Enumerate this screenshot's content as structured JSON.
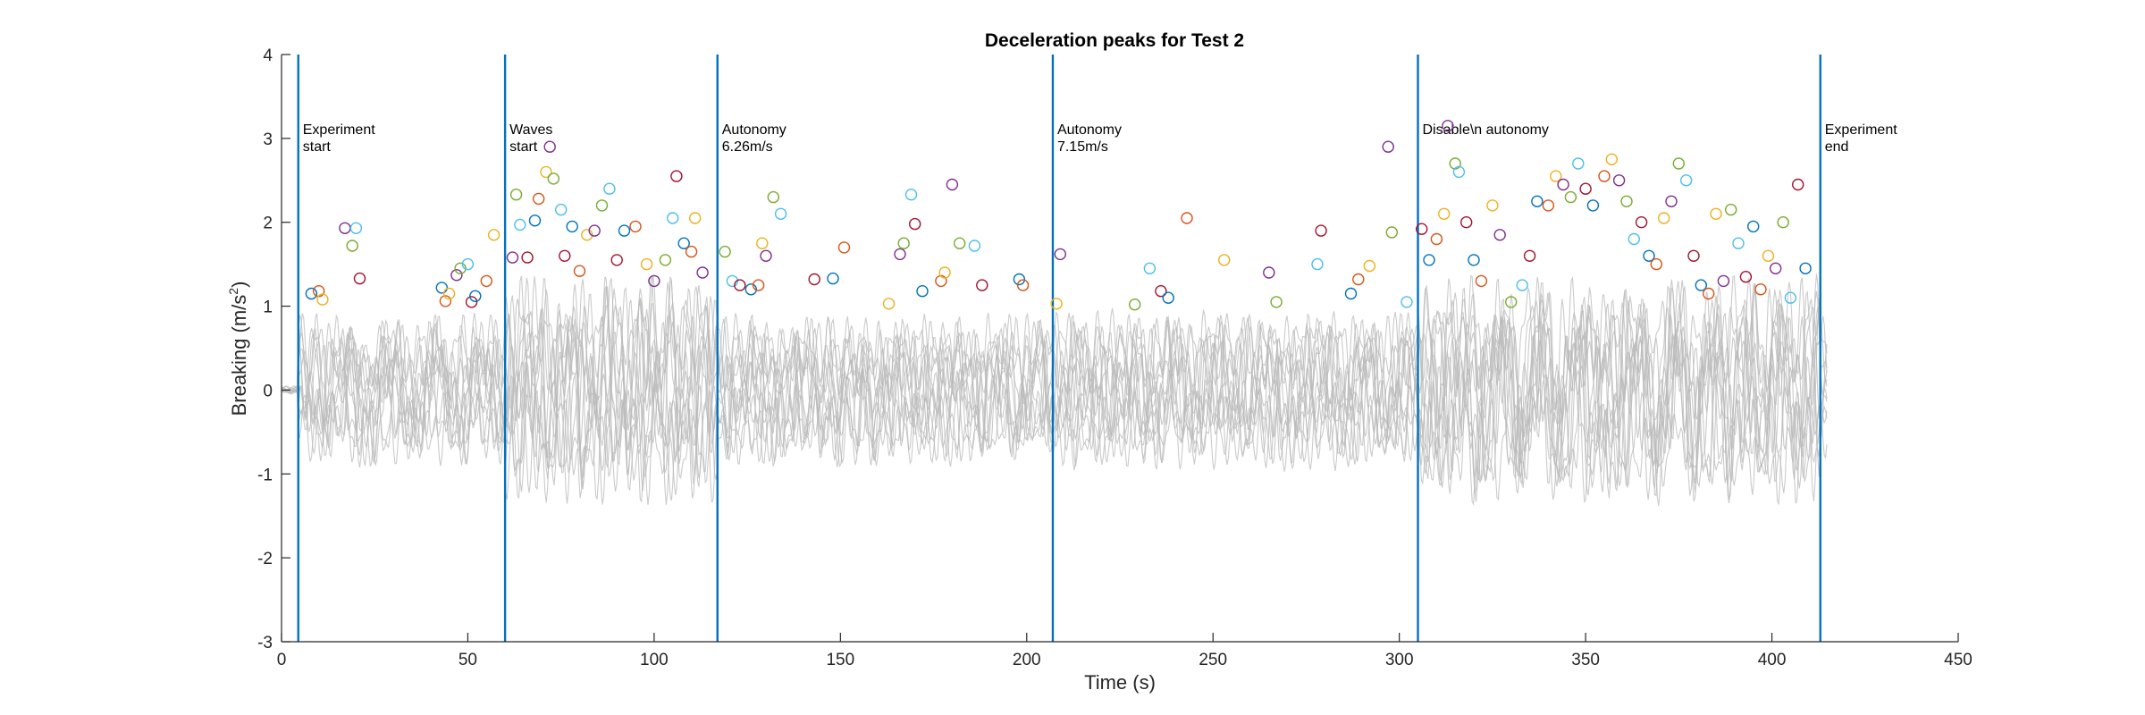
{
  "chart_data": {
    "type": "line",
    "title": "Deceleration peaks for Test 2",
    "xlabel": "Time (s)",
    "ylabel": "Breaking (m/s²)",
    "ylabel_base": "Breaking (m/s",
    "ylabel_sup": "2",
    "ylabel_close": ")",
    "xlim": [
      0,
      450
    ],
    "ylim": [
      -3,
      4
    ],
    "xticks": [
      "0",
      "50",
      "100",
      "150",
      "200",
      "250",
      "300",
      "350",
      "400",
      "450"
    ],
    "yticks": [
      "4",
      "3",
      "2",
      "1",
      "0",
      "-1",
      "-2",
      "-3"
    ],
    "grid": false,
    "legend": "none",
    "trace_color": "#bdbdbd",
    "event_color": "#0072BD",
    "peak_colors": [
      "#0072BD",
      "#D95319",
      "#EDB120",
      "#7E2F8E",
      "#77AC30",
      "#4DBEEE",
      "#A2142F"
    ],
    "events": [
      {
        "x": 4.5,
        "lines": [
          "Experiment",
          " start"
        ]
      },
      {
        "x": 60,
        "lines": [
          "Waves",
          " start"
        ]
      },
      {
        "x": 117,
        "lines": [
          "Autonomy",
          " 6.26m/s"
        ]
      },
      {
        "x": 207,
        "lines": [
          "Autonomy",
          " 7.15m/s"
        ]
      },
      {
        "x": 305,
        "lines": [
          "Disable\\n autonomy"
        ]
      },
      {
        "x": 413,
        "lines": [
          "Experiment",
          " end"
        ]
      }
    ],
    "peaks": [
      {
        "x": 8,
        "y": 1.15
      },
      {
        "x": 10,
        "y": 1.18
      },
      {
        "x": 11,
        "y": 1.08
      },
      {
        "x": 17,
        "y": 1.93
      },
      {
        "x": 19,
        "y": 1.72
      },
      {
        "x": 20,
        "y": 1.93
      },
      {
        "x": 21,
        "y": 1.33
      },
      {
        "x": 43,
        "y": 1.22
      },
      {
        "x": 44,
        "y": 1.06
      },
      {
        "x": 45,
        "y": 1.15
      },
      {
        "x": 47,
        "y": 1.37
      },
      {
        "x": 48,
        "y": 1.45
      },
      {
        "x": 50,
        "y": 1.5
      },
      {
        "x": 51,
        "y": 1.05
      },
      {
        "x": 52,
        "y": 1.12
      },
      {
        "x": 55,
        "y": 1.3
      },
      {
        "x": 57,
        "y": 1.85
      },
      {
        "x": 62,
        "y": 1.58
      },
      {
        "x": 63,
        "y": 2.33
      },
      {
        "x": 64,
        "y": 1.97
      },
      {
        "x": 66,
        "y": 1.58
      },
      {
        "x": 68,
        "y": 2.02
      },
      {
        "x": 69,
        "y": 2.28
      },
      {
        "x": 71,
        "y": 2.6
      },
      {
        "x": 72,
        "y": 2.9
      },
      {
        "x": 73,
        "y": 2.52
      },
      {
        "x": 75,
        "y": 2.15
      },
      {
        "x": 76,
        "y": 1.6
      },
      {
        "x": 78,
        "y": 1.95
      },
      {
        "x": 80,
        "y": 1.42
      },
      {
        "x": 82,
        "y": 1.85
      },
      {
        "x": 84,
        "y": 1.9
      },
      {
        "x": 86,
        "y": 2.2
      },
      {
        "x": 88,
        "y": 2.4
      },
      {
        "x": 90,
        "y": 1.55
      },
      {
        "x": 92,
        "y": 1.9
      },
      {
        "x": 95,
        "y": 1.95
      },
      {
        "x": 98,
        "y": 1.5
      },
      {
        "x": 100,
        "y": 1.3
      },
      {
        "x": 103,
        "y": 1.55
      },
      {
        "x": 105,
        "y": 2.05
      },
      {
        "x": 106,
        "y": 2.55
      },
      {
        "x": 108,
        "y": 1.75
      },
      {
        "x": 110,
        "y": 1.65
      },
      {
        "x": 111,
        "y": 2.05
      },
      {
        "x": 113,
        "y": 1.4
      },
      {
        "x": 119,
        "y": 1.65
      },
      {
        "x": 121,
        "y": 1.3
      },
      {
        "x": 123,
        "y": 1.25
      },
      {
        "x": 126,
        "y": 1.2
      },
      {
        "x": 128,
        "y": 1.25
      },
      {
        "x": 129,
        "y": 1.75
      },
      {
        "x": 130,
        "y": 1.6
      },
      {
        "x": 132,
        "y": 2.3
      },
      {
        "x": 134,
        "y": 2.1
      },
      {
        "x": 143,
        "y": 1.32
      },
      {
        "x": 148,
        "y": 1.33
      },
      {
        "x": 151,
        "y": 1.7
      },
      {
        "x": 163,
        "y": 1.03
      },
      {
        "x": 166,
        "y": 1.62
      },
      {
        "x": 167,
        "y": 1.75
      },
      {
        "x": 169,
        "y": 2.33
      },
      {
        "x": 170,
        "y": 1.98
      },
      {
        "x": 172,
        "y": 1.18
      },
      {
        "x": 177,
        "y": 1.3
      },
      {
        "x": 178,
        "y": 1.4
      },
      {
        "x": 180,
        "y": 2.45
      },
      {
        "x": 182,
        "y": 1.75
      },
      {
        "x": 186,
        "y": 1.72
      },
      {
        "x": 188,
        "y": 1.25
      },
      {
        "x": 198,
        "y": 1.32
      },
      {
        "x": 199,
        "y": 1.25
      },
      {
        "x": 208,
        "y": 1.03
      },
      {
        "x": 209,
        "y": 1.62
      },
      {
        "x": 229,
        "y": 1.02
      },
      {
        "x": 233,
        "y": 1.45
      },
      {
        "x": 236,
        "y": 1.18
      },
      {
        "x": 238,
        "y": 1.1
      },
      {
        "x": 243,
        "y": 2.05
      },
      {
        "x": 253,
        "y": 1.55
      },
      {
        "x": 265,
        "y": 1.4
      },
      {
        "x": 267,
        "y": 1.05
      },
      {
        "x": 278,
        "y": 1.5
      },
      {
        "x": 279,
        "y": 1.9
      },
      {
        "x": 287,
        "y": 1.15
      },
      {
        "x": 289,
        "y": 1.32
      },
      {
        "x": 292,
        "y": 1.48
      },
      {
        "x": 297,
        "y": 2.9
      },
      {
        "x": 298,
        "y": 1.88
      },
      {
        "x": 302,
        "y": 1.05
      },
      {
        "x": 306,
        "y": 1.92
      },
      {
        "x": 308,
        "y": 1.55
      },
      {
        "x": 310,
        "y": 1.8
      },
      {
        "x": 312,
        "y": 2.1
      },
      {
        "x": 313,
        "y": 3.15
      },
      {
        "x": 315,
        "y": 2.7
      },
      {
        "x": 316,
        "y": 2.6
      },
      {
        "x": 318,
        "y": 2.0
      },
      {
        "x": 320,
        "y": 1.55
      },
      {
        "x": 322,
        "y": 1.3
      },
      {
        "x": 325,
        "y": 2.2
      },
      {
        "x": 327,
        "y": 1.85
      },
      {
        "x": 330,
        "y": 1.05
      },
      {
        "x": 333,
        "y": 1.25
      },
      {
        "x": 335,
        "y": 1.6
      },
      {
        "x": 337,
        "y": 2.25
      },
      {
        "x": 340,
        "y": 2.2
      },
      {
        "x": 342,
        "y": 2.55
      },
      {
        "x": 344,
        "y": 2.45
      },
      {
        "x": 346,
        "y": 2.3
      },
      {
        "x": 348,
        "y": 2.7
      },
      {
        "x": 350,
        "y": 2.4
      },
      {
        "x": 352,
        "y": 2.2
      },
      {
        "x": 355,
        "y": 2.55
      },
      {
        "x": 357,
        "y": 2.75
      },
      {
        "x": 359,
        "y": 2.5
      },
      {
        "x": 361,
        "y": 2.25
      },
      {
        "x": 363,
        "y": 1.8
      },
      {
        "x": 365,
        "y": 2.0
      },
      {
        "x": 367,
        "y": 1.6
      },
      {
        "x": 369,
        "y": 1.5
      },
      {
        "x": 371,
        "y": 2.05
      },
      {
        "x": 373,
        "y": 2.25
      },
      {
        "x": 375,
        "y": 2.7
      },
      {
        "x": 377,
        "y": 2.5
      },
      {
        "x": 379,
        "y": 1.6
      },
      {
        "x": 381,
        "y": 1.25
      },
      {
        "x": 383,
        "y": 1.15
      },
      {
        "x": 385,
        "y": 2.1
      },
      {
        "x": 387,
        "y": 1.3
      },
      {
        "x": 389,
        "y": 2.15
      },
      {
        "x": 391,
        "y": 1.75
      },
      {
        "x": 393,
        "y": 1.35
      },
      {
        "x": 395,
        "y": 1.95
      },
      {
        "x": 397,
        "y": 1.2
      },
      {
        "x": 399,
        "y": 1.6
      },
      {
        "x": 401,
        "y": 1.45
      },
      {
        "x": 403,
        "y": 2.0
      },
      {
        "x": 405,
        "y": 1.1
      },
      {
        "x": 407,
        "y": 2.45
      },
      {
        "x": 409,
        "y": 1.45
      }
    ]
  }
}
